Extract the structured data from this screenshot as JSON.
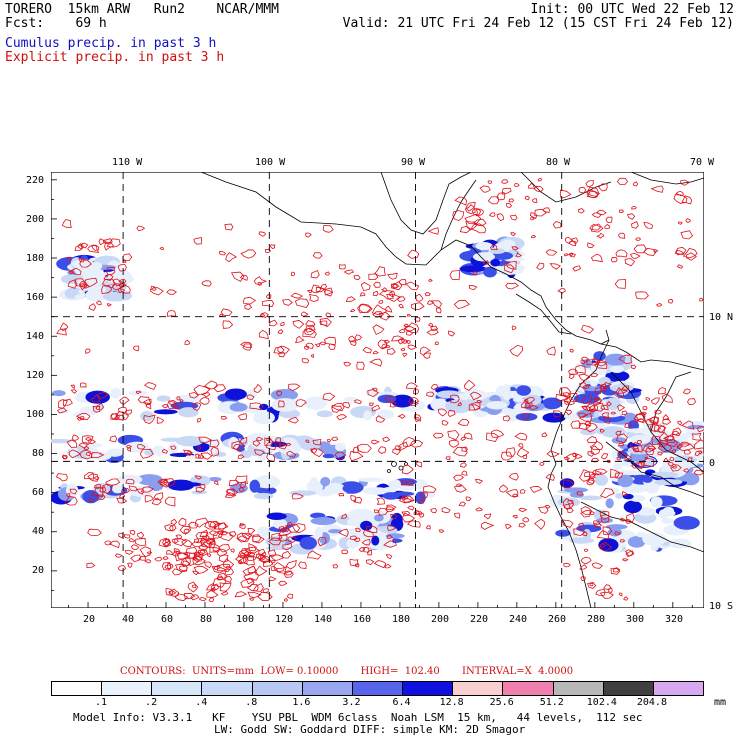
{
  "header": {
    "left_line1": "TORERO  15km ARW   Run2    NCAR/MMM",
    "left_line2": "Fcst:    69 h",
    "right_line1": "Init: 00 UTC Wed 22 Feb 12",
    "right_line2": "Valid: 21 UTC Fri 24 Feb 12 (15 CST Fri 24 Feb 12)"
  },
  "legend": {
    "cumulus": "Cumulus precip. in past 3 h",
    "explicit": "Explicit precip. in past 3 h",
    "cumulus_color": "#1010c0",
    "explicit_color": "#d01010"
  },
  "map": {
    "top_lon_labels": [
      "110 W",
      "100 W",
      "90 W",
      "80 W",
      "70 W"
    ],
    "right_lat_labels": [
      "10 N",
      "0",
      "10 S"
    ],
    "left_axis_ticks": [
      "220",
      "200",
      "180",
      "160",
      "140",
      "120",
      "100",
      "80",
      "60",
      "40",
      "20"
    ],
    "bottom_axis_ticks": [
      "20",
      "40",
      "60",
      "80",
      "100",
      "120",
      "140",
      "160",
      "180",
      "200",
      "220",
      "240",
      "260",
      "280",
      "300",
      "320"
    ],
    "x_range": [
      1,
      336
    ],
    "y_range": [
      1,
      224
    ],
    "grid_x": [
      38,
      113,
      188,
      263,
      338
    ],
    "grid_y": [
      150,
      76
    ],
    "land_color": "#ffffff",
    "contour_color": "#e0101a",
    "shading_colors": [
      "#e8f0fb",
      "#c8d8f5",
      "#8a9ef0",
      "#3c4ee8",
      "#0c12d8"
    ]
  },
  "contour_info": {
    "text": "CONTOURS:  UNITS=mm  LOW= 0.10000       HIGH=  102.40       INTERVAL=X  4.0000"
  },
  "colorbar": {
    "labels": [
      ".1",
      ".2",
      ".4",
      ".8",
      "1.6",
      "3.2",
      "6.4",
      "12.8",
      "25.6",
      "51.2",
      "102.4",
      "204.8"
    ],
    "unit": "mm",
    "colors": [
      "#ffffff",
      "#eaf2fb",
      "#d8e6fa",
      "#c9daf8",
      "#b8c8f4",
      "#9aa6f0",
      "#5864ea",
      "#1010e0",
      "#f8d0d0",
      "#f080b0",
      "#b8b8b8",
      "#404040",
      "#d8a8f0"
    ]
  },
  "model_info": {
    "line1": "Model Info: V3.3.1   KF    YSU PBL  WDM 6class  Noah LSM  15 km,   44 levels,  112 sec",
    "line2": "LW: Godd SW: Goddard DIFF: simple KM: 2D Smagor"
  }
}
